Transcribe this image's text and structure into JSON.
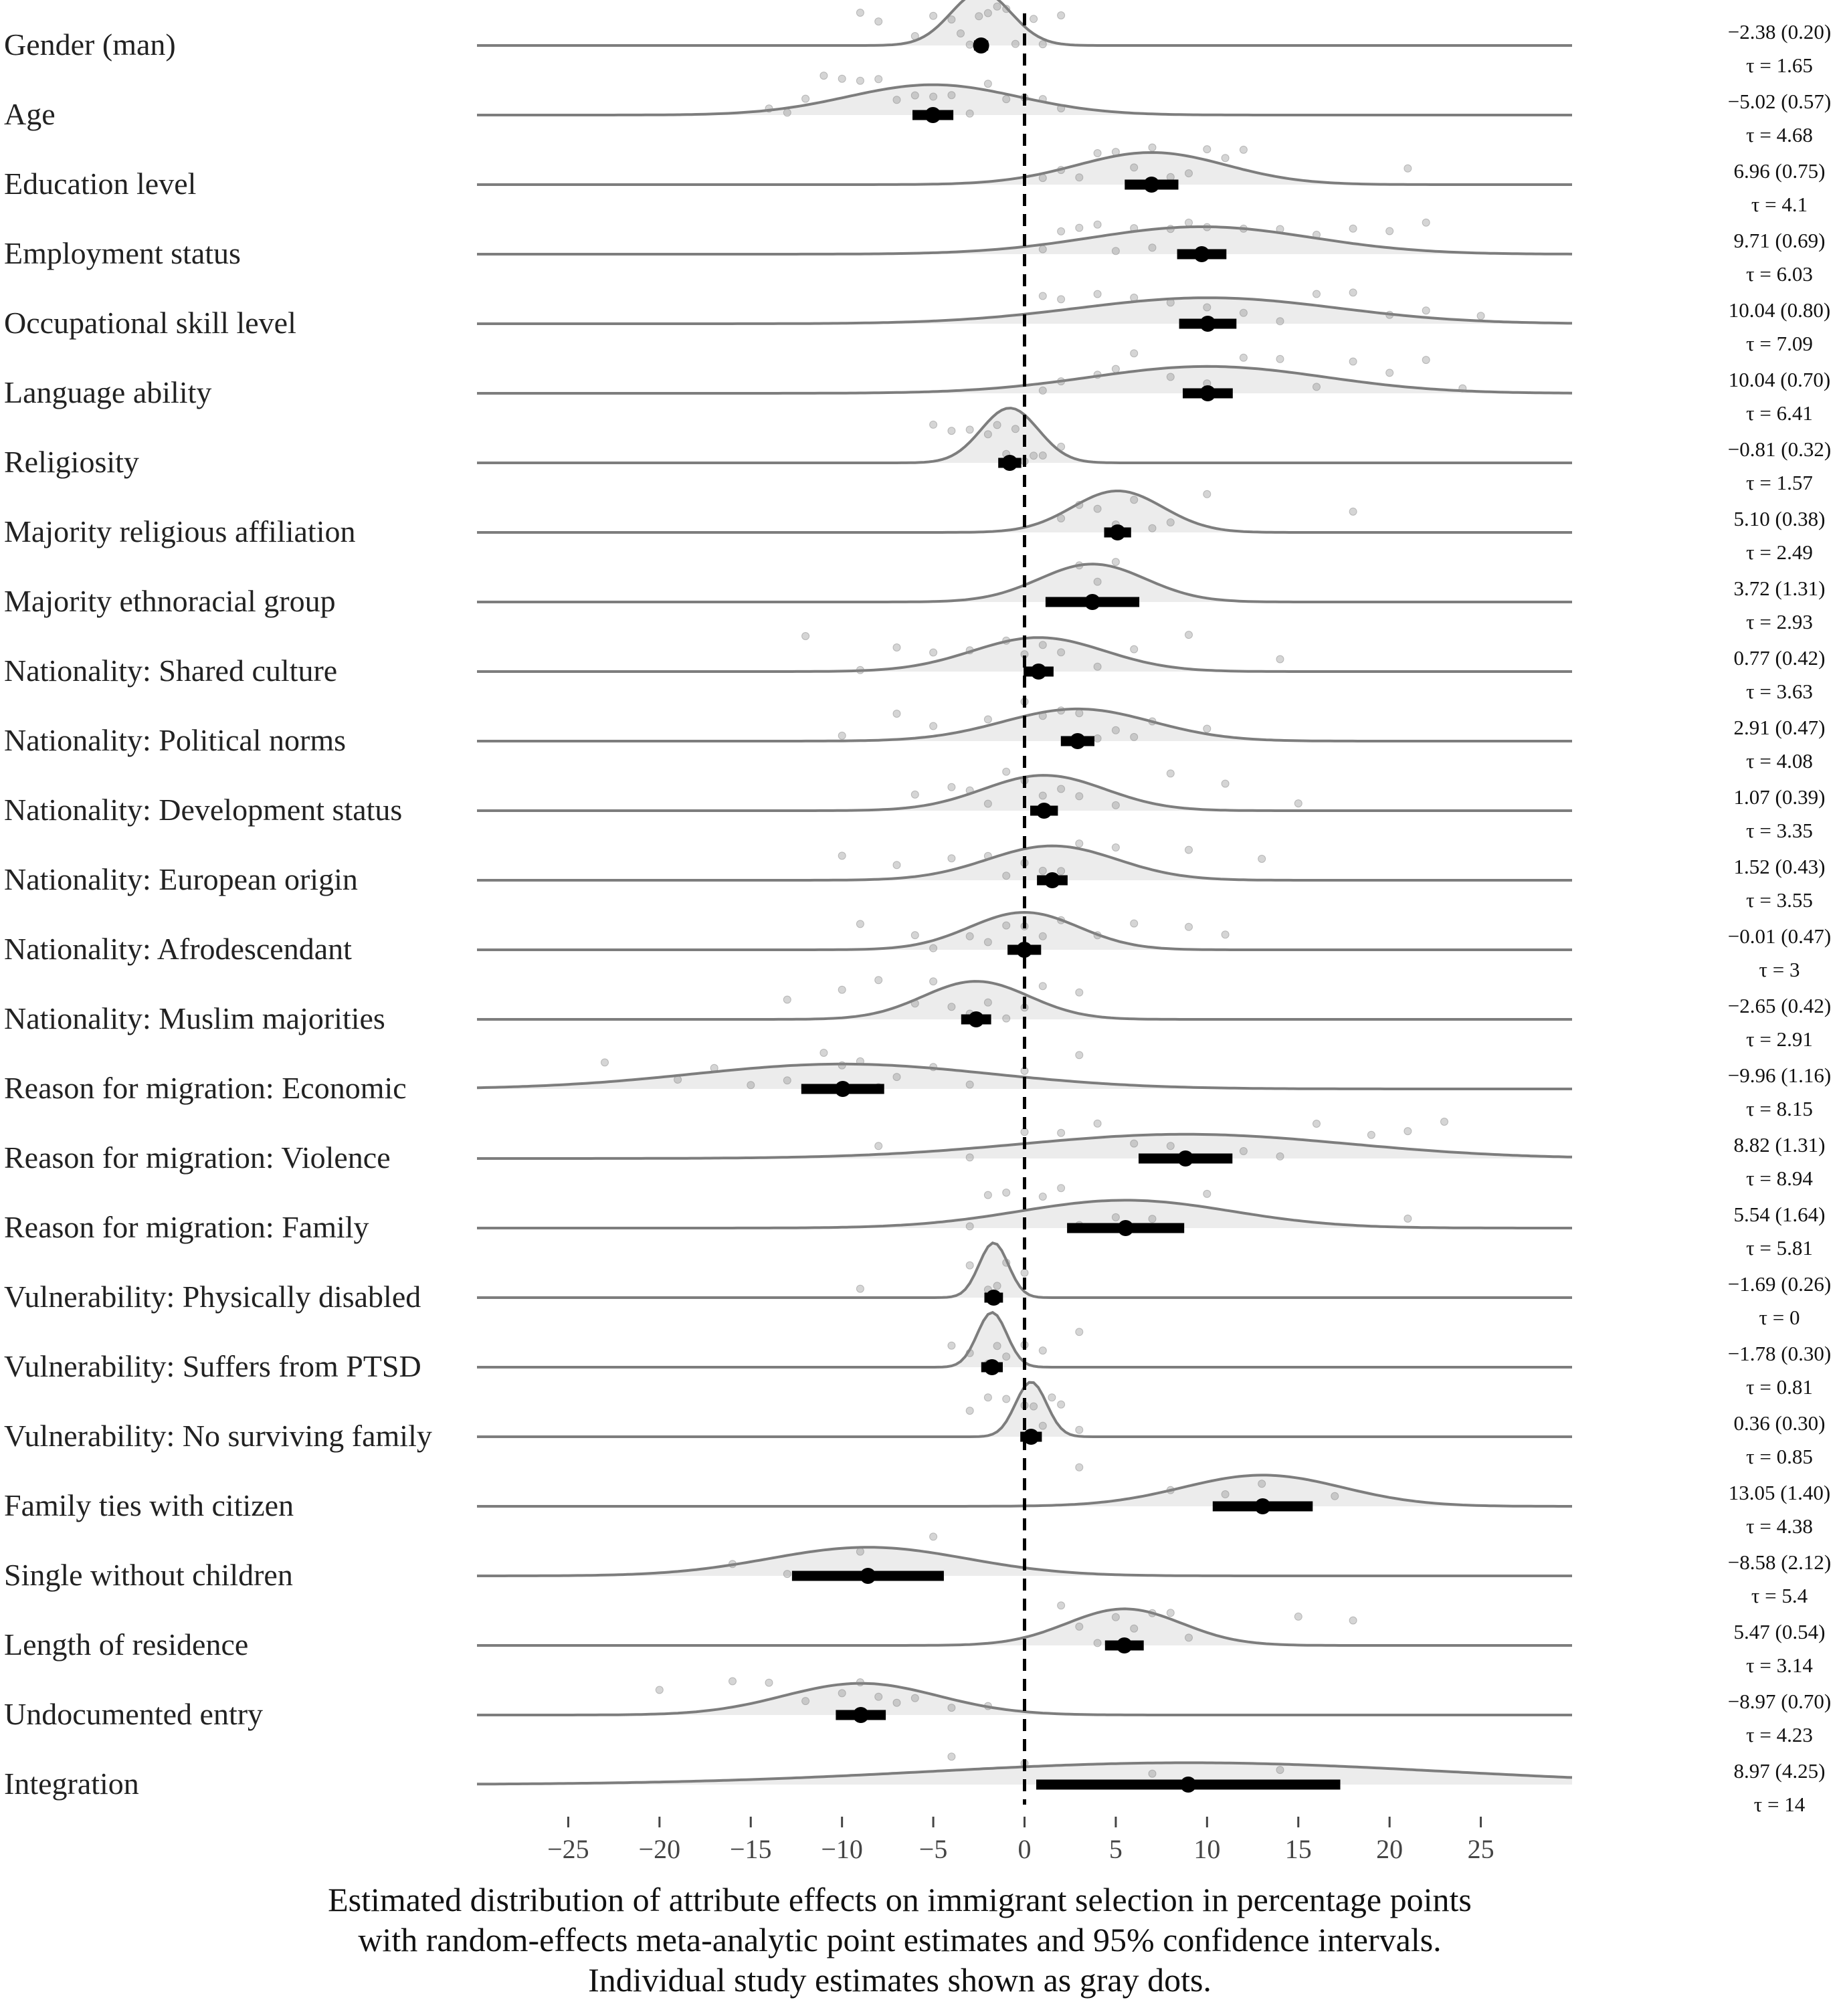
{
  "chart_data": {
    "type": "ridgeline",
    "xlim": [
      -30,
      30
    ],
    "x_ticks": [
      -25,
      -20,
      -15,
      -10,
      -5,
      0,
      5,
      10,
      15,
      20,
      25
    ],
    "x_tick_labels": [
      "−25",
      "−20",
      "−15",
      "−10",
      "−5",
      "0",
      "5",
      "10",
      "15",
      "20",
      "25"
    ],
    "reference_line": 0,
    "caption": [
      "Estimated distribution of attribute effects on immigrant selection in percentage points",
      "with random-effects meta-analytic point estimates and 95% confidence intervals.",
      "Individual study estimates shown as gray dots."
    ],
    "colors": {
      "density": "#7d7d7d",
      "fill": "#dcdcdc",
      "point": "#000000",
      "dots": "#888888",
      "reference": "#000000"
    },
    "rows": [
      {
        "label": "Gender (man)",
        "estimate": -2.38,
        "se": 0.2,
        "tau": 1.65,
        "estimate_text": "−2.38 (0.20)",
        "tau_text": "τ = 1.65",
        "ci": [
          -2.77,
          -1.99
        ],
        "study_estimates": [
          -9,
          -8,
          -6,
          -5,
          -4,
          -3.5,
          -3,
          -2.5,
          -2,
          -1.5,
          -1,
          -0.5,
          0.5,
          1,
          2
        ]
      },
      {
        "label": "Age",
        "estimate": -5.02,
        "se": 0.57,
        "tau": 4.68,
        "estimate_text": "−5.02 (0.57)",
        "tau_text": "τ = 4.68",
        "ci": [
          -6.14,
          -3.9
        ],
        "study_estimates": [
          -14,
          -13,
          -12,
          -11,
          -10,
          -9,
          -8,
          -7,
          -6,
          -5,
          -4,
          -3,
          -2,
          -1,
          0,
          1,
          2
        ]
      },
      {
        "label": "Education level",
        "estimate": 6.96,
        "se": 0.75,
        "tau": 4.1,
        "estimate_text": "6.96 (0.75)",
        "tau_text": "τ = 4.1",
        "ci": [
          5.49,
          8.43
        ],
        "study_estimates": [
          1,
          2,
          3,
          4,
          5,
          6,
          7,
          8,
          9,
          10,
          11,
          12,
          21
        ]
      },
      {
        "label": "Employment status",
        "estimate": 9.71,
        "se": 0.69,
        "tau": 6.03,
        "estimate_text": "9.71 (0.69)",
        "tau_text": "τ = 6.03",
        "ci": [
          8.36,
          11.06
        ],
        "study_estimates": [
          1,
          2,
          3,
          4,
          5,
          6,
          7,
          8,
          9,
          10,
          12,
          14,
          16,
          18,
          20,
          22
        ]
      },
      {
        "label": "Occupational skill level",
        "estimate": 10.04,
        "se": 0.8,
        "tau": 7.09,
        "estimate_text": "10.04 (0.80)",
        "tau_text": "τ = 7.09",
        "ci": [
          8.47,
          11.61
        ],
        "study_estimates": [
          1,
          2,
          4,
          6,
          8,
          10,
          12,
          14,
          16,
          18,
          20,
          22,
          25
        ]
      },
      {
        "label": "Language ability",
        "estimate": 10.04,
        "se": 0.7,
        "tau": 6.41,
        "estimate_text": "10.04 (0.70)",
        "tau_text": "τ = 6.41",
        "ci": [
          8.67,
          11.41
        ],
        "study_estimates": [
          1,
          2,
          4,
          5,
          6,
          8,
          10,
          12,
          14,
          16,
          18,
          20,
          22,
          24
        ]
      },
      {
        "label": "Religiosity",
        "estimate": -0.81,
        "se": 0.32,
        "tau": 1.57,
        "estimate_text": "−0.81 (0.32)",
        "tau_text": "τ = 1.57",
        "ci": [
          -1.44,
          -0.18
        ],
        "study_estimates": [
          -5,
          -4,
          -3,
          -2,
          -1.5,
          -1,
          -0.5,
          0,
          0.5,
          1,
          2
        ]
      },
      {
        "label": "Majority religious affiliation",
        "estimate": 5.1,
        "se": 0.38,
        "tau": 2.49,
        "estimate_text": "5.10 (0.38)",
        "tau_text": "τ = 2.49",
        "ci": [
          4.36,
          5.84
        ],
        "study_estimates": [
          2,
          3,
          4,
          5,
          6,
          7,
          8,
          10,
          18
        ]
      },
      {
        "label": "Majority ethnoracial group",
        "estimate": 3.72,
        "se": 1.31,
        "tau": 2.93,
        "estimate_text": "3.72 (1.31)",
        "tau_text": "τ = 2.93",
        "ci": [
          1.15,
          6.29
        ],
        "study_estimates": [
          3,
          4,
          5
        ]
      },
      {
        "label": "Nationality: Shared culture",
        "estimate": 0.77,
        "se": 0.42,
        "tau": 3.63,
        "estimate_text": "0.77 (0.42)",
        "tau_text": "τ = 3.63",
        "ci": [
          -0.05,
          1.59
        ],
        "study_estimates": [
          -12,
          -9,
          -7,
          -5,
          -3,
          -1,
          0,
          1,
          2,
          4,
          6,
          9,
          14
        ]
      },
      {
        "label": "Nationality: Political norms",
        "estimate": 2.91,
        "se": 0.47,
        "tau": 4.08,
        "estimate_text": "2.91 (0.47)",
        "tau_text": "τ = 4.08",
        "ci": [
          1.99,
          3.83
        ],
        "study_estimates": [
          -10,
          -7,
          -5,
          -2,
          0,
          1,
          2,
          3,
          4,
          5,
          6,
          7,
          10
        ]
      },
      {
        "label": "Nationality: Development status",
        "estimate": 1.07,
        "se": 0.39,
        "tau": 3.35,
        "estimate_text": "1.07 (0.39)",
        "tau_text": "τ = 3.35",
        "ci": [
          0.31,
          1.83
        ],
        "study_estimates": [
          -6,
          -4,
          -3,
          -2,
          -1,
          0,
          1,
          2,
          3,
          5,
          8,
          11,
          15
        ]
      },
      {
        "label": "Nationality: European origin",
        "estimate": 1.52,
        "se": 0.43,
        "tau": 3.55,
        "estimate_text": "1.52 (0.43)",
        "tau_text": "τ = 3.55",
        "ci": [
          0.68,
          2.36
        ],
        "study_estimates": [
          -10,
          -7,
          -4,
          -2,
          -1,
          0,
          1,
          2,
          3,
          5,
          9,
          13
        ]
      },
      {
        "label": "Nationality: Afrodescendant",
        "estimate": -0.01,
        "se": 0.47,
        "tau": 3,
        "estimate_text": "−0.01 (0.47)",
        "tau_text": "τ = 3",
        "ci": [
          -0.93,
          0.91
        ],
        "study_estimates": [
          -9,
          -6,
          -5,
          -3,
          -2,
          -1,
          0,
          1,
          2,
          4,
          6,
          9,
          11
        ]
      },
      {
        "label": "Nationality: Muslim majorities",
        "estimate": -2.65,
        "se": 0.42,
        "tau": 2.91,
        "estimate_text": "−2.65 (0.42)",
        "tau_text": "τ = 2.91",
        "ci": [
          -3.47,
          -1.83
        ],
        "study_estimates": [
          -13,
          -10,
          -8,
          -6,
          -5,
          -4,
          -3,
          -2,
          -1,
          0,
          1,
          3
        ]
      },
      {
        "label": "Reason for migration: Economic",
        "estimate": -9.96,
        "se": 1.16,
        "tau": 8.15,
        "estimate_text": "−9.96 (1.16)",
        "tau_text": "τ = 8.15",
        "ci": [
          -12.23,
          -7.69
        ],
        "study_estimates": [
          -23,
          -19,
          -17,
          -15,
          -13,
          -11,
          -10,
          -9,
          -8,
          -7,
          -5,
          -3,
          0,
          3
        ]
      },
      {
        "label": "Reason for migration: Violence",
        "estimate": 8.82,
        "se": 1.31,
        "tau": 8.94,
        "estimate_text": "8.82 (1.31)",
        "tau_text": "τ = 8.94",
        "ci": [
          6.25,
          11.39
        ],
        "study_estimates": [
          -8,
          -3,
          0,
          2,
          4,
          6,
          8,
          10,
          12,
          14,
          16,
          19,
          21,
          23
        ]
      },
      {
        "label": "Reason for migration: Family",
        "estimate": 5.54,
        "se": 1.64,
        "tau": 5.81,
        "estimate_text": "5.54 (1.64)",
        "tau_text": "τ = 5.81",
        "ci": [
          2.33,
          8.75
        ],
        "study_estimates": [
          -3,
          -2,
          -1,
          1,
          2,
          3,
          5,
          7,
          10,
          21
        ]
      },
      {
        "label": "Vulnerability: Physically disabled",
        "estimate": -1.69,
        "se": 0.26,
        "tau": 0,
        "estimate_text": "−1.69 (0.26)",
        "tau_text": "τ = 0",
        "ci": [
          -2.2,
          -1.18
        ],
        "study_estimates": [
          -9,
          -3,
          -2,
          -1.5,
          -1,
          0
        ]
      },
      {
        "label": "Vulnerability: Suffers from PTSD",
        "estimate": -1.78,
        "se": 0.3,
        "tau": 0.81,
        "estimate_text": "−1.78 (0.30)",
        "tau_text": "τ = 0.81",
        "ci": [
          -2.37,
          -1.19
        ],
        "study_estimates": [
          -4,
          -3,
          -2,
          -1.5,
          -1,
          0,
          1,
          3
        ]
      },
      {
        "label": "Vulnerability: No surviving family",
        "estimate": 0.36,
        "se": 0.3,
        "tau": 0.85,
        "estimate_text": "0.36 (0.30)",
        "tau_text": "τ = 0.85",
        "ci": [
          -0.23,
          0.95
        ],
        "study_estimates": [
          -3,
          -2,
          -1,
          0,
          0.5,
          1,
          1.5,
          2,
          3
        ]
      },
      {
        "label": "Family ties with citizen",
        "estimate": 13.05,
        "se": 1.4,
        "tau": 4.38,
        "estimate_text": "13.05 (1.40)",
        "tau_text": "τ = 4.38",
        "ci": [
          10.31,
          15.79
        ],
        "study_estimates": [
          3,
          8,
          11,
          13,
          17
        ]
      },
      {
        "label": "Single without children",
        "estimate": -8.58,
        "se": 2.12,
        "tau": 5.4,
        "estimate_text": "−8.58 (2.12)",
        "tau_text": "τ = 5.4",
        "ci": [
          -12.74,
          -4.42
        ],
        "study_estimates": [
          -16,
          -13,
          -9,
          -5
        ]
      },
      {
        "label": "Length of residence",
        "estimate": 5.47,
        "se": 0.54,
        "tau": 3.14,
        "estimate_text": "5.47 (0.54)",
        "tau_text": "τ = 3.14",
        "ci": [
          4.41,
          6.53
        ],
        "study_estimates": [
          2,
          3,
          4,
          5,
          6,
          7,
          8,
          9,
          15,
          18
        ]
      },
      {
        "label": "Undocumented entry",
        "estimate": -8.97,
        "se": 0.7,
        "tau": 4.23,
        "estimate_text": "−8.97 (0.70)",
        "tau_text": "τ = 4.23",
        "ci": [
          -10.34,
          -7.6
        ],
        "study_estimates": [
          -20,
          -16,
          -14,
          -12,
          -10,
          -9,
          -8,
          -7,
          -6,
          -4,
          -2
        ]
      },
      {
        "label": "Integration",
        "estimate": 8.97,
        "se": 4.25,
        "tau": 14,
        "estimate_text": "8.97 (4.25)",
        "tau_text": "τ = 14",
        "ci": [
          0.64,
          17.3
        ],
        "study_estimates": [
          -4,
          0,
          7,
          14
        ]
      }
    ]
  }
}
